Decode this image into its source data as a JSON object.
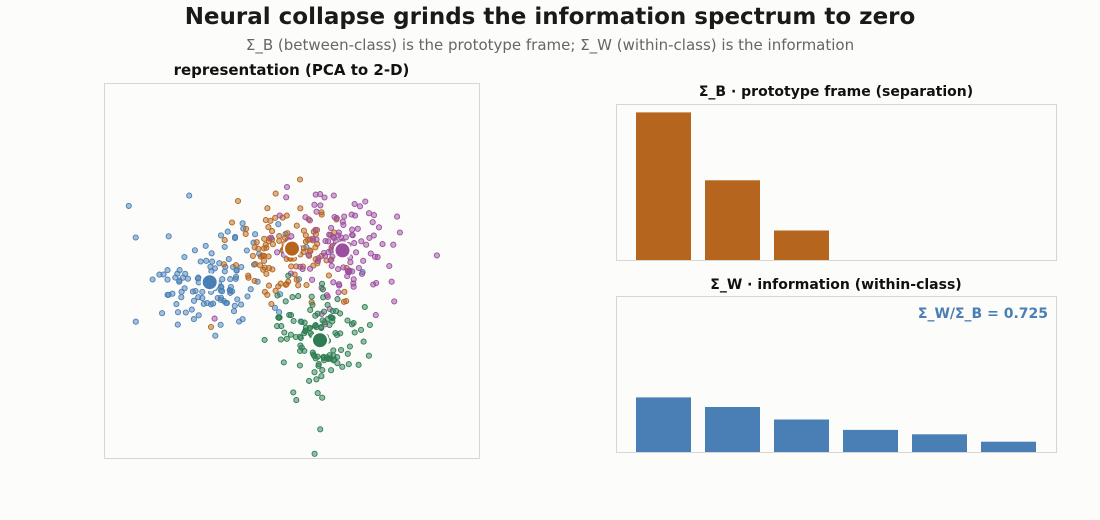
{
  "title": "Neural collapse grinds the information spectrum to zero",
  "subtitle": "Σ_B (between-class) is the prototype frame; Σ_W (within-class) is the information",
  "chart_data": [
    {
      "type": "scatter",
      "title": "representation (PCA to 2-D)",
      "xlim": [
        -1.0,
        1.0
      ],
      "ylim": [
        -1.0,
        1.0
      ],
      "grid": false,
      "series": [
        {
          "color": "#4a7fb5",
          "centroid": [
            -0.44,
            -0.06
          ],
          "spread": [
            0.21,
            0.14
          ],
          "n": 120
        },
        {
          "color": "#b5651d",
          "centroid": [
            0.0,
            0.12
          ],
          "spread": [
            0.16,
            0.12
          ],
          "n": 120
        },
        {
          "color": "#9b4f9f",
          "centroid": [
            0.27,
            0.11
          ],
          "spread": [
            0.16,
            0.15
          ],
          "n": 120
        },
        {
          "color": "#2e7d52",
          "centroid": [
            0.15,
            -0.37
          ],
          "spread": [
            0.13,
            0.15
          ],
          "n": 120
        }
      ]
    },
    {
      "type": "bar",
      "title": "Σ_B  ·  prototype frame (separation)",
      "values": [
        1.0,
        0.54,
        0.2
      ],
      "ylim": [
        0,
        1.05
      ],
      "color": "#b5651d"
    },
    {
      "type": "bar",
      "title": "Σ_W  ·  information (within-class)",
      "values": [
        0.37,
        0.305,
        0.22,
        0.15,
        0.12,
        0.07
      ],
      "ylim": [
        0,
        1.05
      ],
      "color": "#4a7fb5",
      "annotation": "Σ_W/Σ_B = 0.725"
    }
  ]
}
